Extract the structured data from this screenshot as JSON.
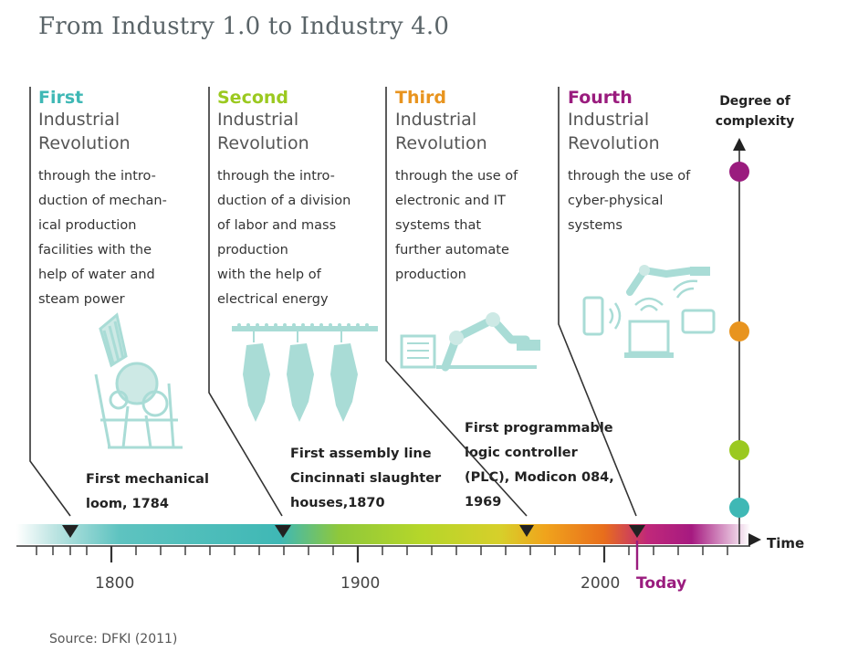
{
  "title": "From Industry 1.0 to Industry 4.0",
  "revolutions": [
    {
      "ordinal": "First",
      "heading": [
        "Industrial",
        "Revolution"
      ],
      "description": [
        "through the intro-",
        "duction of mechan-",
        "ical production",
        "facilities with the",
        "help of water and",
        "steam power"
      ],
      "color": "#3fb8b5"
    },
    {
      "ordinal": "Second",
      "heading": [
        "Industrial",
        "Revolution"
      ],
      "description": [
        "through the intro-",
        "duction of a division",
        "of labor and mass",
        "production",
        "with the help of",
        "electrical energy"
      ],
      "color": "#9bc920"
    },
    {
      "ordinal": "Third",
      "heading": [
        "Industrial",
        "Revolution"
      ],
      "description": [
        "through the use of",
        "electronic and IT",
        "systems that",
        "further automate",
        "production"
      ],
      "color": "#e8941f"
    },
    {
      "ordinal": "Fourth",
      "heading": [
        "Industrial",
        "Revolution"
      ],
      "description": [
        "through the use of",
        "cyber-physical",
        "systems"
      ],
      "color": "#9a1c7e"
    }
  ],
  "milestones": [
    {
      "lines": [
        "First mechanical",
        "loom, 1784"
      ],
      "year": 1784
    },
    {
      "lines": [
        "First assembly line",
        "Cincinnati slaughter",
        "houses,1870"
      ],
      "year": 1870
    },
    {
      "lines": [
        "First programmable",
        "logic controller",
        "(PLC), Modicon 084,",
        "1969"
      ],
      "year": 1969
    }
  ],
  "complexity_axis": {
    "label": [
      "Degree of",
      "complexity"
    ]
  },
  "time_axis": {
    "label": "Time",
    "ticks": [
      "1800",
      "1900",
      "2000"
    ],
    "today_label": "Today"
  },
  "colors": {
    "turquoise": "#3fb8b5",
    "green": "#9bc920",
    "orange": "#e8941f",
    "purple": "#9a1c7e",
    "illustration": "#a9dcd6"
  },
  "icons": [
    "mechanical-loom-icon",
    "assembly-line-icon",
    "robot-arm-plc-icon",
    "cyber-physical-devices-icon"
  ],
  "source": "Source: DFKI (2011)"
}
